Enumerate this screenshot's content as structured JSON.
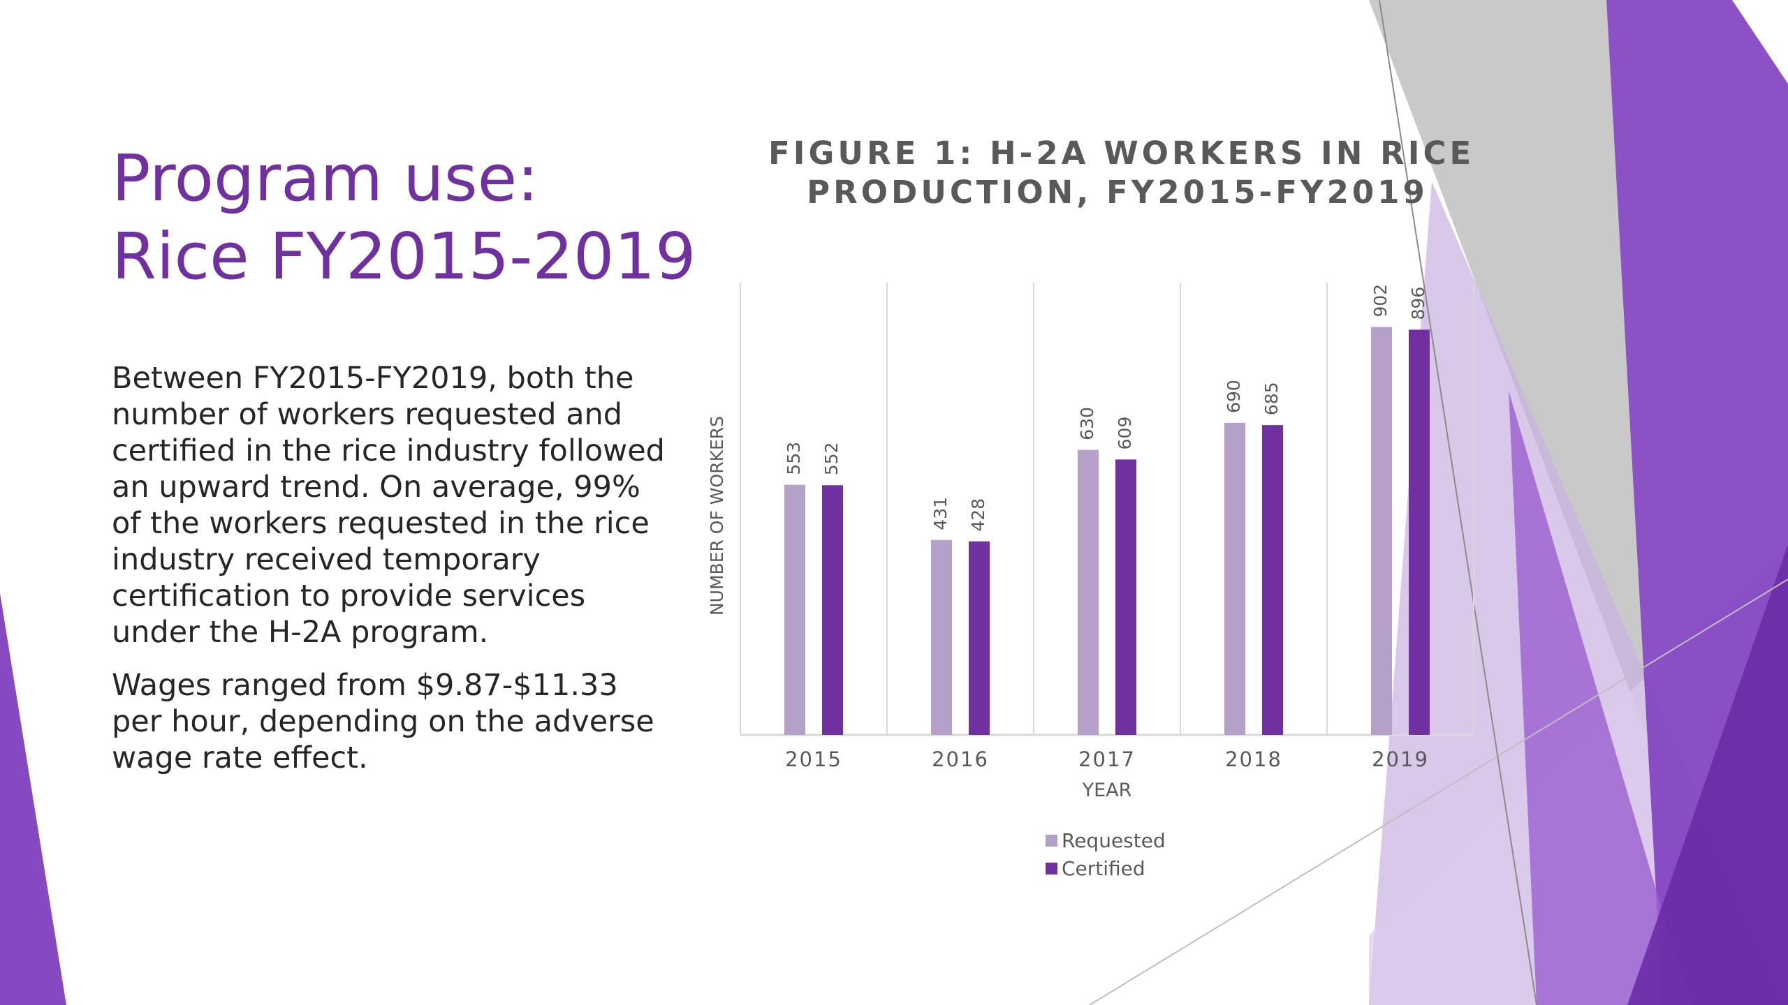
{
  "slide": {
    "title_line1": "Program use:",
    "title_line2": "Rice FY2015-2019",
    "paragraph1": "Between FY2015-FY2019, both the number of workers requested and certified in the rice industry followed an upward trend. On average, 99% of the workers requested in the rice industry received temporary certification to provide services under the H-2A program.",
    "paragraph2": "Wages ranged from $9.87-$11.33 per hour, depending on the adverse wage rate effect."
  },
  "colors": {
    "title": "#7030a0",
    "requested": "#b4a0c8",
    "certified": "#7030a0",
    "deco_light_purple": "#c9b0e0",
    "deco_purple": "#7f3fbf",
    "deco_gray": "#bfbfbf"
  },
  "chart_data": {
    "type": "bar",
    "title_line1": "FIGURE 1: H-2A WORKERS IN RICE",
    "title_line2": "PRODUCTION, FY2015-FY2019",
    "xlabel": "YEAR",
    "ylabel": "NUMBER OF WORKERS",
    "categories": [
      "2015",
      "2016",
      "2017",
      "2018",
      "2019"
    ],
    "series": [
      {
        "name": "Requested",
        "values": [
          553,
          431,
          630,
          690,
          902
        ]
      },
      {
        "name": "Certified",
        "values": [
          552,
          428,
          609,
          685,
          896
        ]
      }
    ],
    "ylim": [
      0,
      1000
    ],
    "data_labels": true,
    "grid": "vertical",
    "legend": "bottom"
  }
}
